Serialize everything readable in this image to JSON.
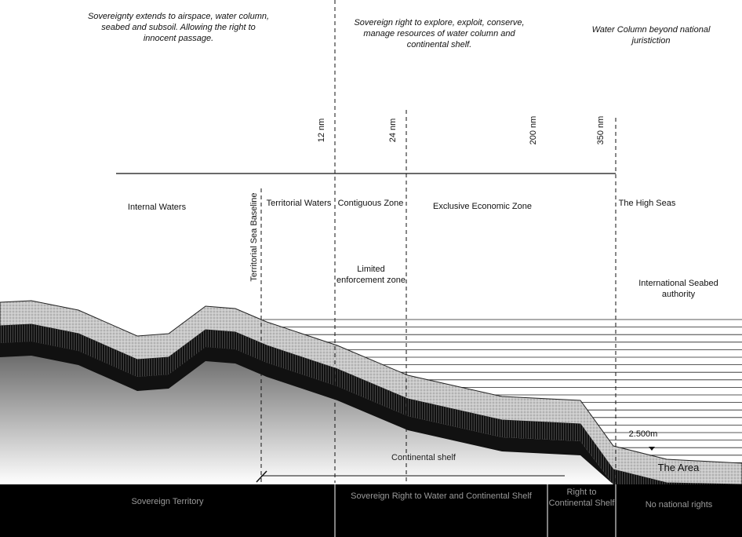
{
  "notes": [
    "Sovereignty extends to airspace, water column, seabed and subsoil. Allowing the right to innocent passage.",
    "Sovereign right to explore, exploit, conserve, manage resources of water column and continental shelf.",
    "Water Column beyond national juristiction"
  ],
  "distances": [
    "12 nm",
    "24 nm",
    "200 nm",
    "350 nm"
  ],
  "baseline": "Territorial Sea Baseline",
  "zones": [
    "Internal Waters",
    "Territorial Waters",
    "Contiguous Zone",
    "Exclusive Economic Zone",
    "The High Seas"
  ],
  "labels": {
    "limited": "Limited enforcement zone",
    "seabed_authority": "International Seabed authority",
    "depth": "2.500m",
    "shelf": "Continental shelf",
    "area": "The Area"
  },
  "rights": [
    "Sovereign Territory",
    "Sovereign Right to Water and Continental Shelf",
    "Right to Continental Shelf",
    "No national rights"
  ]
}
